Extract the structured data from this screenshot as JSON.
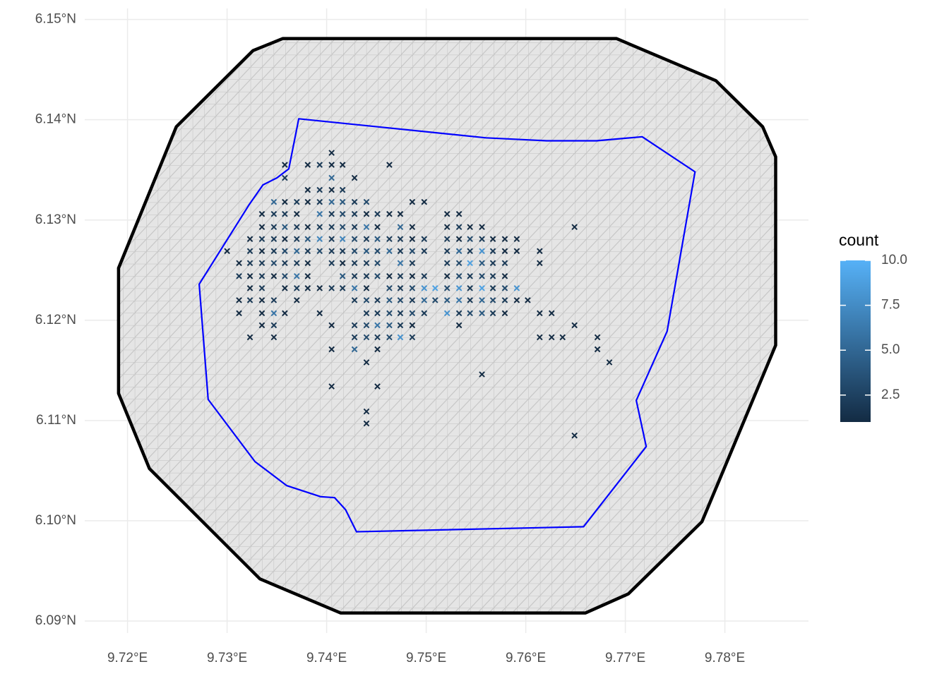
{
  "chart_data": {
    "type": "scatter",
    "xlim": [
      9.7157,
      9.7884
    ],
    "ylim": [
      6.0888,
      6.1511
    ],
    "xticks": [
      {
        "value": 9.72,
        "label": "9.72°E"
      },
      {
        "value": 9.73,
        "label": "9.73°E"
      },
      {
        "value": 9.74,
        "label": "9.74°E"
      },
      {
        "value": 9.75,
        "label": "9.75°E"
      },
      {
        "value": 9.76,
        "label": "9.76°E"
      },
      {
        "value": 9.77,
        "label": "9.77°E"
      },
      {
        "value": 9.78,
        "label": "9.78°E"
      }
    ],
    "yticks": [
      {
        "value": 6.09,
        "label": "6.09°N"
      },
      {
        "value": 6.1,
        "label": "6.10°N"
      },
      {
        "value": 6.11,
        "label": "6.11°N"
      },
      {
        "value": 6.12,
        "label": "6.12°N"
      },
      {
        "value": 6.13,
        "label": "6.13°N"
      },
      {
        "value": 6.14,
        "label": "6.14°N"
      },
      {
        "value": 6.15,
        "label": "6.15°N"
      }
    ],
    "grid": true,
    "mesh_fill": "#e5e5e5",
    "mesh_color": "#bdbdbd",
    "boundaries": [
      {
        "color": "#000000",
        "x": [
          9.7356,
          9.7691,
          9.7791,
          9.7838,
          9.7851,
          9.7851,
          9.7777,
          9.7703,
          9.766,
          9.7414,
          9.7333,
          9.7222,
          9.7191,
          9.7191,
          9.7249,
          9.7326,
          9.7356
        ],
        "y": [
          6.1481,
          6.1481,
          6.1439,
          6.1393,
          6.1363,
          6.1175,
          6.0999,
          6.0927,
          6.0908,
          6.0908,
          6.0942,
          6.1052,
          6.1127,
          6.1252,
          6.1393,
          6.1469,
          6.1481
        ]
      },
      {
        "color": "#0000ff",
        "x": [
          9.7372,
          9.7362,
          9.735,
          9.7336,
          9.7322,
          9.7272,
          9.7281,
          9.7328,
          9.736,
          9.7394,
          9.7408,
          9.7419,
          9.743,
          9.7658,
          9.7721,
          9.7711,
          9.7742,
          9.777,
          9.7717,
          9.7671,
          9.7621,
          9.756,
          9.7372
        ],
        "y": [
          6.1401,
          6.1351,
          6.1342,
          6.1335,
          6.1315,
          6.1236,
          6.1121,
          6.1059,
          6.1035,
          6.1024,
          6.1023,
          6.1011,
          6.0989,
          6.0994,
          6.1074,
          6.112,
          6.1189,
          6.1348,
          6.1383,
          6.1379,
          6.1379,
          6.1382,
          6.1401
        ]
      }
    ],
    "series": [
      {
        "x": [
          9.7405,
          9.7358,
          9.7381,
          9.7393,
          9.7405,
          9.7416,
          9.7463,
          9.7358,
          9.7405,
          9.7428,
          9.7381,
          9.7393,
          9.7405,
          9.7416,
          9.7347,
          9.7358,
          9.737,
          9.7381,
          9.7393,
          9.7405,
          9.7416,
          9.7428,
          9.744,
          9.7486,
          9.7498,
          9.7335,
          9.7347,
          9.7358,
          9.737,
          9.7393,
          9.7405,
          9.7416,
          9.7428,
          9.744,
          9.7451,
          9.7463,
          9.7474,
          9.7521,
          9.7533,
          9.7335,
          9.7347,
          9.7358,
          9.737,
          9.7381,
          9.7393,
          9.7405,
          9.7416,
          9.7428,
          9.744,
          9.7451,
          9.7474,
          9.7486,
          9.7521,
          9.7533,
          9.7544,
          9.7556,
          9.7649,
          9.7323,
          9.7335,
          9.7347,
          9.7358,
          9.737,
          9.7381,
          9.7393,
          9.7405,
          9.7416,
          9.7428,
          9.744,
          9.7451,
          9.7463,
          9.7474,
          9.7486,
          9.7498,
          9.7521,
          9.7533,
          9.7544,
          9.7556,
          9.7567,
          9.7579,
          9.7591,
          9.73,
          9.7323,
          9.7335,
          9.7347,
          9.7358,
          9.737,
          9.7381,
          9.7393,
          9.7405,
          9.7416,
          9.7428,
          9.744,
          9.7451,
          9.7463,
          9.7474,
          9.7486,
          9.7498,
          9.7521,
          9.7533,
          9.7544,
          9.7556,
          9.7567,
          9.7579,
          9.7591,
          9.7614,
          9.7312,
          9.7323,
          9.7335,
          9.7347,
          9.7358,
          9.737,
          9.7381,
          9.7405,
          9.7416,
          9.7428,
          9.744,
          9.7451,
          9.7474,
          9.7486,
          9.7521,
          9.7533,
          9.7544,
          9.7556,
          9.7567,
          9.7579,
          9.7614,
          9.7312,
          9.7323,
          9.7335,
          9.7347,
          9.7358,
          9.737,
          9.7381,
          9.7416,
          9.7428,
          9.744,
          9.7451,
          9.7463,
          9.7474,
          9.7486,
          9.7498,
          9.7521,
          9.7533,
          9.7544,
          9.7556,
          9.7567,
          9.7579,
          9.7323,
          9.7335,
          9.7358,
          9.737,
          9.7381,
          9.7393,
          9.7405,
          9.7416,
          9.7428,
          9.744,
          9.7463,
          9.7474,
          9.7486,
          9.7498,
          9.7509,
          9.7521,
          9.7533,
          9.7544,
          9.7556,
          9.7567,
          9.7579,
          9.7591,
          9.7312,
          9.7323,
          9.7335,
          9.7347,
          9.737,
          9.7428,
          9.744,
          9.7451,
          9.7463,
          9.7474,
          9.7486,
          9.7498,
          9.7509,
          9.7521,
          9.7533,
          9.7544,
          9.7556,
          9.7567,
          9.7579,
          9.7591,
          9.7602,
          9.7312,
          9.7335,
          9.7347,
          9.7358,
          9.7393,
          9.744,
          9.7451,
          9.7463,
          9.7474,
          9.7486,
          9.7498,
          9.7521,
          9.7533,
          9.7544,
          9.7556,
          9.7567,
          9.7579,
          9.7614,
          9.7626,
          9.7335,
          9.7347,
          9.7405,
          9.7428,
          9.744,
          9.7451,
          9.7463,
          9.7474,
          9.7486,
          9.7533,
          9.7649,
          9.7323,
          9.7347,
          9.7428,
          9.744,
          9.7451,
          9.7463,
          9.7474,
          9.7486,
          9.7614,
          9.7626,
          9.7637,
          9.7672,
          9.7405,
          9.7428,
          9.7451,
          9.7672,
          9.744,
          9.7684,
          9.7556,
          9.7405,
          9.7451,
          9.744,
          9.744,
          9.7649
        ],
        "y": [
          6.1367,
          6.1355,
          6.1355,
          6.1355,
          6.1355,
          6.1355,
          6.1355,
          6.1342,
          6.1342,
          6.1342,
          6.133,
          6.133,
          6.133,
          6.133,
          6.1318,
          6.1318,
          6.1318,
          6.1318,
          6.1318,
          6.1318,
          6.1318,
          6.1318,
          6.1318,
          6.1318,
          6.1318,
          6.1306,
          6.1306,
          6.1306,
          6.1306,
          6.1306,
          6.1306,
          6.1306,
          6.1306,
          6.1306,
          6.1306,
          6.1306,
          6.1306,
          6.1306,
          6.1306,
          6.1293,
          6.1293,
          6.1293,
          6.1293,
          6.1293,
          6.1293,
          6.1293,
          6.1293,
          6.1293,
          6.1293,
          6.1293,
          6.1293,
          6.1293,
          6.1293,
          6.1293,
          6.1293,
          6.1293,
          6.1293,
          6.1281,
          6.1281,
          6.1281,
          6.1281,
          6.1281,
          6.1281,
          6.1281,
          6.1281,
          6.1281,
          6.1281,
          6.1281,
          6.1281,
          6.1281,
          6.1281,
          6.1281,
          6.1281,
          6.1281,
          6.1281,
          6.1281,
          6.1281,
          6.1281,
          6.1281,
          6.1281,
          6.1269,
          6.1269,
          6.1269,
          6.1269,
          6.1269,
          6.1269,
          6.1269,
          6.1269,
          6.1269,
          6.1269,
          6.1269,
          6.1269,
          6.1269,
          6.1269,
          6.1269,
          6.1269,
          6.1269,
          6.1269,
          6.1269,
          6.1269,
          6.1269,
          6.1269,
          6.1269,
          6.1269,
          6.1269,
          6.1257,
          6.1257,
          6.1257,
          6.1257,
          6.1257,
          6.1257,
          6.1257,
          6.1257,
          6.1257,
          6.1257,
          6.1257,
          6.1257,
          6.1257,
          6.1257,
          6.1257,
          6.1257,
          6.1257,
          6.1257,
          6.1257,
          6.1257,
          6.1257,
          6.1244,
          6.1244,
          6.1244,
          6.1244,
          6.1244,
          6.1244,
          6.1244,
          6.1244,
          6.1244,
          6.1244,
          6.1244,
          6.1244,
          6.1244,
          6.1244,
          6.1244,
          6.1244,
          6.1244,
          6.1244,
          6.1244,
          6.1244,
          6.1244,
          6.1232,
          6.1232,
          6.1232,
          6.1232,
          6.1232,
          6.1232,
          6.1232,
          6.1232,
          6.1232,
          6.1232,
          6.1232,
          6.1232,
          6.1232,
          6.1232,
          6.1232,
          6.1232,
          6.1232,
          6.1232,
          6.1232,
          6.1232,
          6.1232,
          6.1232,
          6.122,
          6.122,
          6.122,
          6.122,
          6.122,
          6.122,
          6.122,
          6.122,
          6.122,
          6.122,
          6.122,
          6.122,
          6.122,
          6.122,
          6.122,
          6.122,
          6.122,
          6.122,
          6.122,
          6.122,
          6.122,
          6.1207,
          6.1207,
          6.1207,
          6.1207,
          6.1207,
          6.1207,
          6.1207,
          6.1207,
          6.1207,
          6.1207,
          6.1207,
          6.1207,
          6.1207,
          6.1207,
          6.1207,
          6.1207,
          6.1207,
          6.1207,
          6.1207,
          6.1195,
          6.1195,
          6.1195,
          6.1195,
          6.1195,
          6.1195,
          6.1195,
          6.1195,
          6.1195,
          6.1195,
          6.1195,
          6.1183,
          6.1183,
          6.1183,
          6.1183,
          6.1183,
          6.1183,
          6.1183,
          6.1183,
          6.1183,
          6.1183,
          6.1183,
          6.1183,
          6.1171,
          6.1171,
          6.1171,
          6.1171,
          6.1158,
          6.1158,
          6.1146,
          6.1134,
          6.1134,
          6.1109,
          6.1097,
          6.1085
        ],
        "values": [
          1,
          1,
          1,
          2,
          1,
          1,
          1,
          2,
          5,
          1,
          1,
          2,
          1,
          2,
          5,
          1,
          2,
          1,
          2,
          5,
          4,
          2,
          3,
          1,
          1,
          1,
          2,
          2,
          1,
          6,
          2,
          3,
          2,
          1,
          2,
          1,
          1,
          1,
          1,
          1,
          2,
          4,
          2,
          1,
          2,
          2,
          3,
          2,
          6,
          1,
          5,
          1,
          1,
          2,
          1,
          1,
          1,
          1,
          2,
          2,
          1,
          2,
          4,
          7,
          2,
          7,
          3,
          2,
          4,
          2,
          2,
          1,
          2,
          2,
          1,
          3,
          2,
          1,
          1,
          1,
          1,
          2,
          1,
          2,
          3,
          5,
          2,
          3,
          2,
          2,
          3,
          4,
          3,
          5,
          2,
          3,
          2,
          2,
          5,
          2,
          8,
          2,
          1,
          1,
          1,
          1,
          2,
          2,
          3,
          2,
          2,
          1,
          2,
          1,
          2,
          2,
          3,
          6,
          2,
          2,
          3,
          9,
          4,
          2,
          2,
          1,
          2,
          1,
          2,
          1,
          3,
          6,
          1,
          4,
          2,
          2,
          3,
          1,
          2,
          1,
          2,
          1,
          3,
          2,
          3,
          2,
          1,
          1,
          2,
          1,
          2,
          1,
          1,
          2,
          2,
          6,
          1,
          3,
          2,
          3,
          8,
          9,
          3,
          8,
          2,
          9,
          2,
          3,
          8,
          1,
          2,
          1,
          2,
          1,
          2,
          3,
          2,
          4,
          3,
          2,
          5,
          3,
          4,
          6,
          2,
          5,
          3,
          2,
          1,
          1,
          1,
          1,
          6,
          1,
          1,
          2,
          2,
          3,
          2,
          3,
          2,
          8,
          2,
          3,
          4,
          2,
          1,
          1,
          1,
          1,
          2,
          1,
          2,
          3,
          6,
          4,
          2,
          1,
          1,
          1,
          1,
          1,
          2,
          3,
          2,
          3,
          8,
          2,
          1,
          1,
          1,
          1,
          1,
          5,
          1,
          1,
          1,
          1,
          1,
          1,
          1,
          1,
          1,
          1
        ]
      }
    ],
    "colorbar": {
      "title": "count",
      "lim": [
        1,
        10
      ],
      "colors": [
        "#132b43",
        "#56b1f7"
      ],
      "ticks": [
        2.5,
        {
          "value": 5,
          "label": "5.0"
        },
        7.5,
        {
          "value": 10,
          "label": "10.0"
        }
      ]
    }
  }
}
